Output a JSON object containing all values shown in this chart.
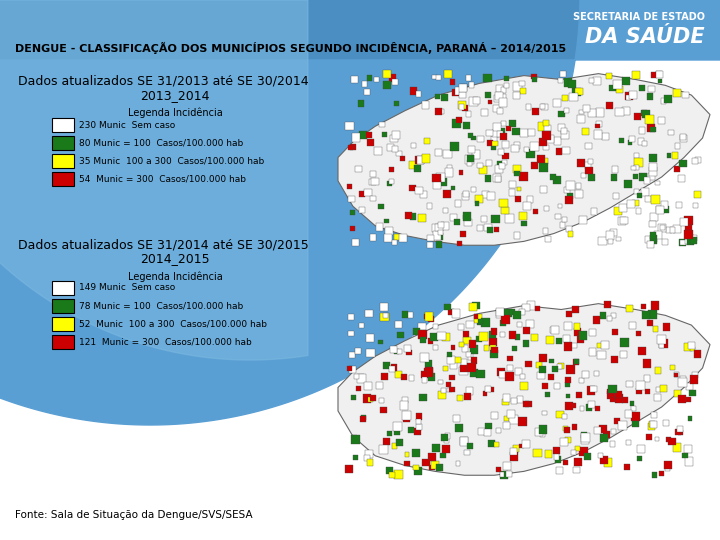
{
  "title": "DENGUE - CLASSIFICAÇÃO DOS MUNICÍPIOS SEGUNDO INCIDÊNCIA, PARANÁ – 2014/2015",
  "secretaria_line1": "SECRETARIA DE ESTADO",
  "secretaria_line2": "DA SAÚDE",
  "block1_title_line1": "Dados atualizados SE 31/2013 até SE 30/2014",
  "block1_title_line2": "2013_2014",
  "block1_legend_title": "Legenda Incidência",
  "block1_items": [
    {
      "color": "#ffffff",
      "border": "#000000",
      "label": "230 Munic  Sem caso"
    },
    {
      "color": "#1a7a1a",
      "border": "#000000",
      "label": "80 Munic = 100  Casos/100.000 hab"
    },
    {
      "color": "#ffff00",
      "border": "#000000",
      "label": "35 Munic  100 a 300  Casos/100.000 hab"
    },
    {
      "color": "#cc0000",
      "border": "#000000",
      "label": "54  Munic = 300  Casos/100.000 hab"
    }
  ],
  "block2_title_line1": "Dados atualizados SE 31/2014 até SE 30/2015",
  "block2_title_line2": "2014_2015",
  "block2_legend_title": "Legenda Incidência",
  "block2_items": [
    {
      "color": "#ffffff",
      "border": "#000000",
      "label": "149 Munic  Sem caso"
    },
    {
      "color": "#1a7a1a",
      "border": "#000000",
      "label": "78 Munic = 100  Casos/100.000 hab"
    },
    {
      "color": "#ffff00",
      "border": "#000000",
      "label": "52  Munic  100 a 300  Casos/100.000 hab"
    },
    {
      "color": "#cc0000",
      "border": "#000000",
      "label": "121  Munic = 300  Casos/100.000 hab"
    }
  ],
  "footer": "Fonte: Sala de Situação da Dengue/SVS/SESA",
  "bg_color": "#ffffff",
  "header_color1": "#4a8ec2",
  "header_color2": "#5a9fd4"
}
